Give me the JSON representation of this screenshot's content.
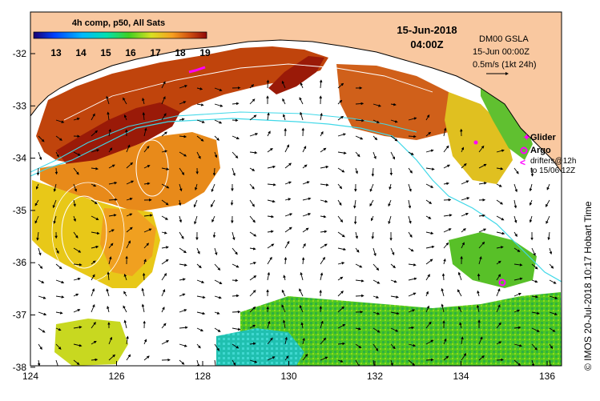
{
  "map": {
    "colorbar": {
      "title": "4h comp, p50, All Sats",
      "ticks": [
        "13",
        "14",
        "15",
        "16",
        "17",
        "18",
        "19"
      ],
      "colors": [
        "#1a0080",
        "#0040ff",
        "#00b0ff",
        "#00e0a0",
        "#60d020",
        "#d8e020",
        "#f8b020",
        "#e06010",
        "#a01808"
      ]
    },
    "date": "15-Jun-2018",
    "time": "04:00Z",
    "product": {
      "line1": "DM00 GSLA",
      "line2": "15-Jun 00:00Z",
      "line3": "0.5m/s (1kt 24h)"
    },
    "legend": {
      "glider": "Glider",
      "argo": "Argo",
      "drifters_line1": "drifters@12h",
      "drifters_line2": "to 15/06 12Z"
    },
    "lat_ticks": [
      "-32",
      "-33",
      "-34",
      "-35",
      "-36",
      "-37",
      "-38"
    ],
    "lon_ticks": [
      "124",
      "126",
      "128",
      "130",
      "132",
      "134",
      "136"
    ],
    "credit": "© IMOS 20-Jul-2018 10:17 Hobart Time",
    "colors": {
      "land": "#f9c8a0",
      "glider": "#ff00ff",
      "argo": "#ff00ff",
      "shelf_contour": "#40d8e8"
    }
  }
}
